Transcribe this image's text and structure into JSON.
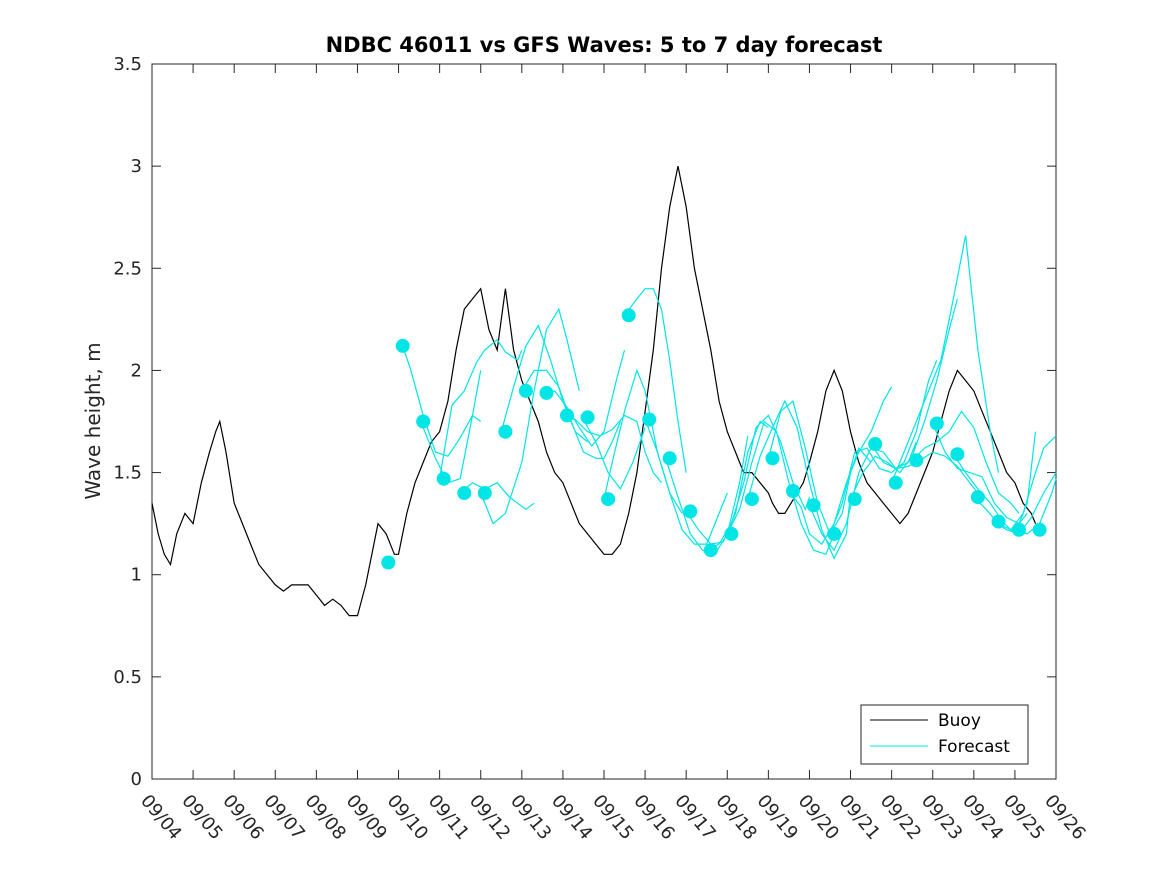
{
  "chart_data": {
    "type": "line",
    "title": "NDBC 46011 vs GFS Waves: 5 to 7 day forecast",
    "xlabel": "",
    "ylabel": "Wave height, m",
    "xlim": [
      0,
      22
    ],
    "ylim": [
      0,
      3.5
    ],
    "x_tick_labels": [
      "09/04",
      "09/05",
      "09/06",
      "09/07",
      "09/08",
      "09/09",
      "09/10",
      "09/11",
      "09/12",
      "09/13",
      "09/14",
      "09/15",
      "09/16",
      "09/17",
      "09/18",
      "09/19",
      "09/20",
      "09/21",
      "09/22",
      "09/23",
      "09/24",
      "09/25",
      "09/26"
    ],
    "y_ticks": [
      0,
      0.5,
      1,
      1.5,
      2,
      2.5,
      3,
      3.5
    ],
    "y_tick_labels": [
      "0",
      "0.5",
      "1",
      "1.5",
      "2",
      "2.5",
      "3",
      "3.5"
    ],
    "legend": [
      {
        "label": "Buoy",
        "color": "#000000"
      },
      {
        "label": "Forecast",
        "color": "#00e5e5"
      }
    ],
    "legend_position": "bottom-right",
    "buoy_color": "#000000",
    "forecast_color": "#00e5e5",
    "buoy": {
      "x": [
        0.0,
        0.15,
        0.3,
        0.45,
        0.6,
        0.8,
        1.0,
        1.2,
        1.4,
        1.55,
        1.65,
        1.8,
        2.0,
        2.2,
        2.4,
        2.6,
        2.8,
        3.0,
        3.2,
        3.4,
        3.6,
        3.8,
        4.0,
        4.2,
        4.4,
        4.6,
        4.8,
        5.0,
        5.2,
        5.4,
        5.5,
        5.7,
        5.9,
        6.0,
        6.2,
        6.4,
        6.6,
        6.8,
        7.0,
        7.2,
        7.4,
        7.6,
        7.8,
        8.0,
        8.2,
        8.4,
        8.6,
        8.8,
        9.0,
        9.2,
        9.4,
        9.6,
        9.8,
        10.0,
        10.2,
        10.4,
        10.6,
        10.8,
        11.0,
        11.2,
        11.4,
        11.6,
        11.8,
        12.0,
        12.2,
        12.4,
        12.6,
        12.8,
        13.0,
        13.2,
        13.4,
        13.6,
        13.8,
        14.0,
        14.2,
        14.4,
        14.6,
        14.8,
        15.0,
        15.1,
        15.25,
        15.4,
        15.55,
        15.7,
        15.85,
        16.0,
        16.2,
        16.4,
        16.6,
        16.8,
        17.0,
        17.2,
        17.4,
        17.6,
        17.8,
        18.0,
        18.2,
        18.4,
        18.6,
        18.8,
        19.0,
        19.2,
        19.4,
        19.6,
        19.8,
        20.0,
        20.2,
        20.4,
        20.6,
        20.8,
        21.0,
        21.2,
        21.4,
        21.5
      ],
      "y": [
        1.35,
        1.2,
        1.1,
        1.05,
        1.2,
        1.3,
        1.25,
        1.45,
        1.6,
        1.7,
        1.75,
        1.6,
        1.35,
        1.25,
        1.15,
        1.05,
        1.0,
        0.95,
        0.92,
        0.95,
        0.95,
        0.95,
        0.9,
        0.85,
        0.88,
        0.85,
        0.8,
        0.8,
        0.95,
        1.15,
        1.25,
        1.2,
        1.1,
        1.1,
        1.3,
        1.45,
        1.55,
        1.65,
        1.7,
        1.85,
        2.1,
        2.3,
        2.35,
        2.4,
        2.2,
        2.1,
        2.4,
        2.1,
        1.95,
        1.85,
        1.75,
        1.6,
        1.5,
        1.45,
        1.35,
        1.25,
        1.2,
        1.15,
        1.1,
        1.1,
        1.15,
        1.3,
        1.5,
        1.8,
        2.1,
        2.5,
        2.8,
        3.0,
        2.8,
        2.5,
        2.3,
        2.1,
        1.85,
        1.7,
        1.6,
        1.5,
        1.5,
        1.45,
        1.4,
        1.35,
        1.3,
        1.3,
        1.35,
        1.4,
        1.45,
        1.55,
        1.7,
        1.9,
        2.0,
        1.9,
        1.7,
        1.55,
        1.45,
        1.4,
        1.35,
        1.3,
        1.25,
        1.3,
        1.4,
        1.5,
        1.6,
        1.75,
        1.9,
        2.0,
        1.95,
        1.9,
        1.8,
        1.7,
        1.6,
        1.5,
        1.45,
        1.35,
        1.3,
        1.25
      ]
    },
    "forecast_lines": [
      {
        "x": [
          6.1,
          6.3,
          6.6,
          6.9,
          7.2,
          7.5,
          7.8,
          8.0
        ],
        "y": [
          2.12,
          2.0,
          1.78,
          1.6,
          1.58,
          1.67,
          1.78,
          1.75
        ]
      },
      {
        "x": [
          6.6,
          6.9,
          7.2,
          7.5,
          7.8,
          8.0
        ],
        "y": [
          1.72,
          1.57,
          1.45,
          1.47,
          1.78,
          2.0
        ]
      },
      {
        "x": [
          7.0,
          7.3,
          7.6,
          7.9,
          8.1,
          8.4,
          8.6,
          8.9,
          9.0
        ],
        "y": [
          1.47,
          1.83,
          1.9,
          2.04,
          2.1,
          2.15,
          2.09,
          2.05,
          2.1
        ]
      },
      {
        "x": [
          7.5,
          7.8,
          8.1,
          8.4,
          8.7,
          9.1,
          9.3
        ],
        "y": [
          1.4,
          1.45,
          1.42,
          1.45,
          1.38,
          1.32,
          1.35
        ]
      },
      {
        "x": [
          8.0,
          8.3,
          8.6,
          9.0,
          9.3,
          9.6,
          9.9,
          10.1,
          10.4
        ],
        "y": [
          1.4,
          1.25,
          1.3,
          1.55,
          1.9,
          2.2,
          2.3,
          2.15,
          1.9
        ]
      },
      {
        "x": [
          8.5,
          8.8,
          9.1,
          9.4,
          9.7,
          10.0,
          10.3,
          10.6
        ],
        "y": [
          1.7,
          1.92,
          2.12,
          2.22,
          2.05,
          1.85,
          1.7,
          1.65
        ]
      },
      {
        "x": [
          9.0,
          9.3,
          9.6,
          9.9,
          10.2,
          10.5,
          10.8,
          11.0,
          11.2,
          11.4
        ],
        "y": [
          1.9,
          2.0,
          2.0,
          1.92,
          1.75,
          1.6,
          1.57,
          1.57,
          1.65,
          1.75
        ]
      },
      {
        "x": [
          9.5,
          9.8,
          10.1,
          10.4,
          10.7,
          11.0,
          11.3,
          11.5
        ],
        "y": [
          1.88,
          1.9,
          1.82,
          1.72,
          1.63,
          1.7,
          1.95,
          2.1
        ]
      },
      {
        "x": [
          10.0,
          10.3,
          10.6,
          10.9,
          11.2,
          11.5,
          11.8,
          12.0,
          12.2,
          12.4
        ],
        "y": [
          1.78,
          1.76,
          1.7,
          1.68,
          1.71,
          1.78,
          1.75,
          1.6,
          1.5,
          1.45
        ]
      },
      {
        "x": [
          10.5,
          10.8,
          11.1,
          11.4,
          11.7,
          12.0
        ],
        "y": [
          1.76,
          1.65,
          1.5,
          1.42,
          1.55,
          1.72
        ]
      },
      {
        "x": [
          11.0,
          11.2,
          11.5,
          11.8,
          12.0,
          12.3,
          12.6,
          12.9
        ],
        "y": [
          1.37,
          1.55,
          1.8,
          2.0,
          1.9,
          1.6,
          1.4,
          1.3
        ]
      },
      {
        "x": [
          11.5,
          11.8,
          12.0,
          12.2,
          12.4,
          12.6,
          12.8,
          13.0
        ],
        "y": [
          2.27,
          2.35,
          2.4,
          2.4,
          2.3,
          2.05,
          1.75,
          1.5
        ]
      },
      {
        "x": [
          12.0,
          12.3,
          12.6,
          12.9,
          13.2,
          13.5,
          13.8,
          14.0
        ],
        "y": [
          1.76,
          1.6,
          1.4,
          1.22,
          1.15,
          1.15,
          1.3,
          1.4
        ]
      },
      {
        "x": [
          12.5,
          12.8,
          13.1,
          13.4,
          13.7,
          14.0,
          14.3,
          14.5
        ],
        "y": [
          1.57,
          1.38,
          1.2,
          1.12,
          1.1,
          1.2,
          1.45,
          1.68
        ]
      },
      {
        "x": [
          13.0,
          13.3,
          13.6,
          13.9,
          14.2,
          14.5,
          14.8,
          15.0
        ],
        "y": [
          1.31,
          1.22,
          1.15,
          1.16,
          1.3,
          1.6,
          1.75,
          1.72
        ]
      },
      {
        "x": [
          13.5,
          13.8,
          14.1,
          14.4,
          14.7,
          15.0,
          15.3,
          15.6,
          15.9,
          16.0
        ],
        "y": [
          1.12,
          1.15,
          1.25,
          1.45,
          1.72,
          1.78,
          1.65,
          1.45,
          1.32,
          1.38
        ]
      },
      {
        "x": [
          14.0,
          14.3,
          14.6,
          14.9,
          15.2,
          15.5,
          15.8,
          16.1,
          16.4,
          16.6
        ],
        "y": [
          1.2,
          1.32,
          1.55,
          1.75,
          1.7,
          1.45,
          1.25,
          1.12,
          1.1,
          1.2
        ]
      },
      {
        "x": [
          14.5,
          14.8,
          15.1,
          15.4,
          15.7,
          16.0,
          16.3,
          16.6,
          16.9,
          17.0
        ],
        "y": [
          1.37,
          1.58,
          1.72,
          1.85,
          1.72,
          1.45,
          1.22,
          1.08,
          1.2,
          1.4
        ]
      },
      {
        "x": [
          15.0,
          15.3,
          15.6,
          15.9,
          16.2,
          16.5,
          16.8,
          17.0,
          17.2,
          17.5
        ],
        "y": [
          1.57,
          1.8,
          1.85,
          1.62,
          1.35,
          1.2,
          1.3,
          1.5,
          1.62,
          1.55
        ]
      },
      {
        "x": [
          15.5,
          15.8,
          16.0,
          16.3,
          16.6,
          16.9,
          17.2,
          17.5,
          17.8,
          18.0
        ],
        "y": [
          1.41,
          1.33,
          1.2,
          1.15,
          1.25,
          1.45,
          1.6,
          1.7,
          1.85,
          1.92
        ]
      },
      {
        "x": [
          16.0,
          16.3,
          16.6,
          16.9,
          17.2,
          17.5,
          17.8,
          18.1,
          18.4,
          18.6
        ],
        "y": [
          1.34,
          1.2,
          1.12,
          1.25,
          1.5,
          1.62,
          1.6,
          1.52,
          1.55,
          1.65
        ]
      },
      {
        "x": [
          16.5,
          16.8,
          17.1,
          17.4,
          17.7,
          18.0,
          18.3,
          18.6,
          18.9,
          19.1
        ],
        "y": [
          1.2,
          1.35,
          1.6,
          1.62,
          1.52,
          1.5,
          1.55,
          1.7,
          1.95,
          2.05
        ]
      },
      {
        "x": [
          17.0,
          17.3,
          17.6,
          17.9,
          18.2,
          18.5,
          18.8,
          19.1,
          19.4,
          19.6
        ],
        "y": [
          1.37,
          1.5,
          1.58,
          1.55,
          1.5,
          1.58,
          1.75,
          1.95,
          2.2,
          2.35
        ]
      },
      {
        "x": [
          17.5,
          17.8,
          18.1,
          18.4,
          18.7,
          19.0,
          19.3,
          19.6,
          19.9,
          20.1
        ],
        "y": [
          1.64,
          1.55,
          1.52,
          1.53,
          1.56,
          1.6,
          1.58,
          1.53,
          1.45,
          1.4
        ]
      },
      {
        "x": [
          18.0,
          18.3,
          18.6,
          18.9,
          19.2,
          19.5,
          19.8,
          20.1,
          20.4,
          20.6
        ],
        "y": [
          1.45,
          1.6,
          1.75,
          1.9,
          2.05,
          2.35,
          2.66,
          2.1,
          1.7,
          1.5
        ]
      },
      {
        "x": [
          18.5,
          18.8,
          19.1,
          19.4,
          19.7,
          20.0,
          20.3,
          20.6,
          20.9,
          21.1
        ],
        "y": [
          1.56,
          1.62,
          1.65,
          1.7,
          1.8,
          1.72,
          1.55,
          1.4,
          1.35,
          1.3
        ]
      },
      {
        "x": [
          19.0,
          19.3,
          19.6,
          19.9,
          20.2,
          20.5,
          20.8,
          21.1,
          21.3
        ],
        "y": [
          1.74,
          1.6,
          1.52,
          1.5,
          1.48,
          1.35,
          1.28,
          1.25,
          1.3
        ]
      },
      {
        "x": [
          19.5,
          19.8,
          20.1,
          20.4,
          20.7,
          21.0,
          21.3,
          21.5
        ],
        "y": [
          1.59,
          1.5,
          1.42,
          1.35,
          1.26,
          1.2,
          1.35,
          1.7
        ]
      },
      {
        "x": [
          20.0,
          20.3,
          20.6,
          20.9,
          21.2,
          21.5,
          21.7,
          22.0
        ],
        "y": [
          1.38,
          1.32,
          1.25,
          1.22,
          1.3,
          1.5,
          1.62,
          1.68
        ]
      },
      {
        "x": [
          20.5,
          20.8,
          21.1,
          21.4,
          21.7,
          22.0
        ],
        "y": [
          1.26,
          1.22,
          1.2,
          1.28,
          1.4,
          1.5
        ]
      },
      {
        "x": [
          21.0,
          21.3,
          21.6,
          21.9,
          22.0
        ],
        "y": [
          1.22,
          1.2,
          1.25,
          1.4,
          1.47
        ]
      }
    ],
    "forecast_markers": {
      "x": [
        5.75,
        6.1,
        6.6,
        7.1,
        7.6,
        8.1,
        8.6,
        9.1,
        9.6,
        10.1,
        10.6,
        11.1,
        11.6,
        12.1,
        12.6,
        13.1,
        13.6,
        14.1,
        14.6,
        15.1,
        15.6,
        16.1,
        16.6,
        17.1,
        17.6,
        18.1,
        18.6,
        19.1,
        19.6,
        20.1,
        20.6,
        21.1,
        21.6
      ],
      "y": [
        1.06,
        2.12,
        1.75,
        1.47,
        1.4,
        1.4,
        1.7,
        1.9,
        1.89,
        1.78,
        1.77,
        1.37,
        2.27,
        1.76,
        1.57,
        1.31,
        1.12,
        1.2,
        1.37,
        1.57,
        1.41,
        1.34,
        1.2,
        1.37,
        1.64,
        1.45,
        1.56,
        1.74,
        1.59,
        1.38,
        1.26,
        1.22,
        1.22
      ]
    }
  }
}
